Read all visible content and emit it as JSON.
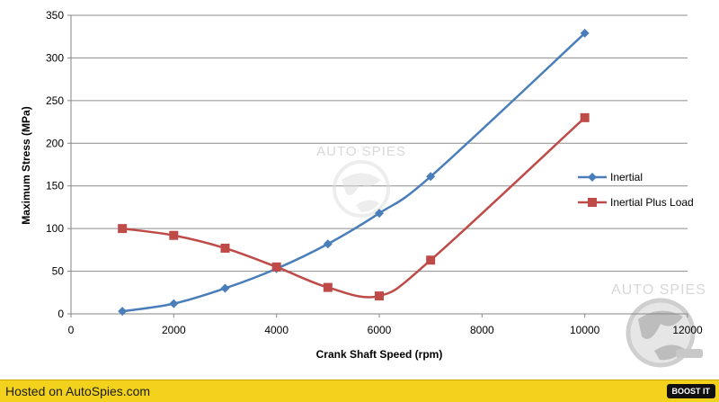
{
  "chart_data": {
    "type": "line",
    "title": "",
    "xlabel": "Crank Shaft Speed (rpm)",
    "ylabel": "Maximum Stress (MPa)",
    "xlim": [
      0,
      12000
    ],
    "ylim": [
      0,
      350
    ],
    "xticks": [
      0,
      2000,
      4000,
      6000,
      8000,
      10000,
      12000
    ],
    "yticks": [
      0,
      50,
      100,
      150,
      200,
      250,
      300,
      350
    ],
    "grid": true,
    "legend_position": "right",
    "series": [
      {
        "name": "Inertial",
        "color": "#4a7ebb",
        "marker": "diamond",
        "x": [
          1000,
          2000,
          3000,
          4000,
          5000,
          6000,
          7000,
          10000
        ],
        "y": [
          3,
          12,
          30,
          53,
          82,
          118,
          161,
          329
        ]
      },
      {
        "name": "Inertial Plus Load",
        "color": "#be4b48",
        "marker": "square",
        "x": [
          1000,
          2000,
          3000,
          4000,
          5000,
          6000,
          7000,
          10000
        ],
        "y": [
          100,
          92,
          77,
          55,
          31,
          21,
          63,
          230
        ]
      }
    ]
  },
  "watermark": {
    "text": "AUTO SPIES"
  },
  "footer": {
    "text": "Hosted on AutoSpies.com",
    "button_label": "BOOST IT",
    "bar_color": "#f2d21c"
  }
}
